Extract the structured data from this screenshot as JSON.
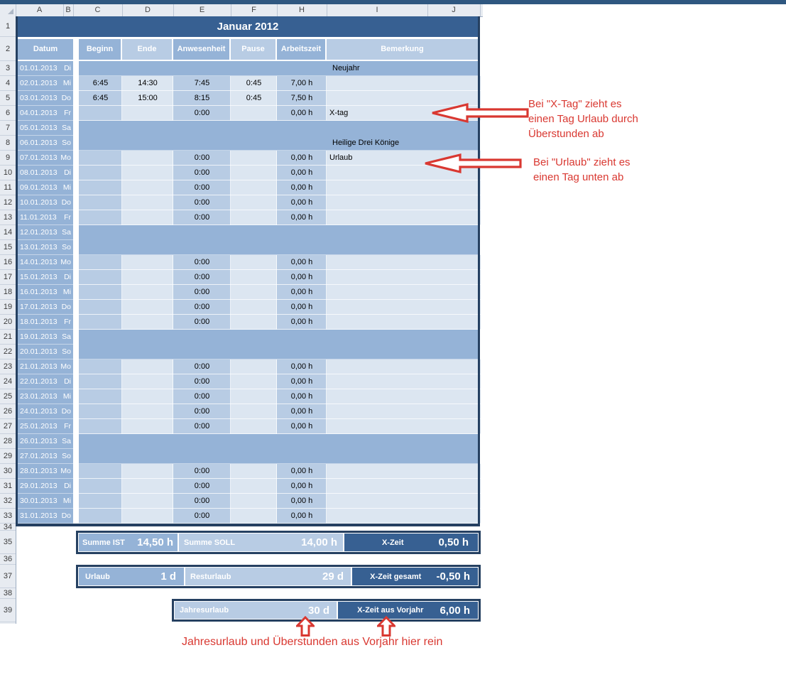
{
  "title": "Januar 2012",
  "spreadsheet": {
    "column_headers": [
      "A",
      "B",
      "C",
      "D",
      "E",
      "F",
      "H",
      "I",
      "J"
    ],
    "row_numbers": [
      "1",
      "2",
      "3",
      "4",
      "5",
      "6",
      "7",
      "8",
      "9",
      "10",
      "11",
      "12",
      "13",
      "14",
      "15",
      "16",
      "17",
      "18",
      "19",
      "20",
      "21",
      "22",
      "23",
      "24",
      "25",
      "26",
      "27",
      "28",
      "29",
      "30",
      "31",
      "32",
      "33",
      "34",
      "35",
      "36",
      "37",
      "38",
      "39"
    ]
  },
  "table": {
    "headers": {
      "datum": "Datum",
      "beginn": "Beginn",
      "ende": "Ende",
      "anwesenheit": "Anwesenheit",
      "pause": "Pause",
      "arbeitszeit": "Arbeitszeit",
      "bemerkung": "Bemerkung"
    },
    "rows": [
      {
        "date": "01.01.2013",
        "day": "Di",
        "band": true,
        "note": "Neujahr"
      },
      {
        "date": "02.01.2013",
        "day": "Mi",
        "beginn": "6:45",
        "ende": "14:30",
        "anwesenheit": "7:45",
        "pause": "0:45",
        "arbeitszeit": "7,00 h",
        "bemerkung": ""
      },
      {
        "date": "03.01.2013",
        "day": "Do",
        "beginn": "6:45",
        "ende": "15:00",
        "anwesenheit": "8:15",
        "pause": "0:45",
        "arbeitszeit": "7,50 h",
        "bemerkung": ""
      },
      {
        "date": "04.01.2013",
        "day": "Fr",
        "beginn": "",
        "ende": "",
        "anwesenheit": "0:00",
        "pause": "",
        "arbeitszeit": "0,00 h",
        "bemerkung": "X-tag"
      },
      {
        "date": "05.01.2013",
        "day": "Sa",
        "band": true,
        "note": ""
      },
      {
        "date": "06.01.2013",
        "day": "So",
        "band": true,
        "note": "Heilige Drei Könige"
      },
      {
        "date": "07.01.2013",
        "day": "Mo",
        "beginn": "",
        "ende": "",
        "anwesenheit": "0:00",
        "pause": "",
        "arbeitszeit": "0,00 h",
        "bemerkung": "Urlaub"
      },
      {
        "date": "08.01.2013",
        "day": "Di",
        "beginn": "",
        "ende": "",
        "anwesenheit": "0:00",
        "pause": "",
        "arbeitszeit": "0,00 h",
        "bemerkung": ""
      },
      {
        "date": "09.01.2013",
        "day": "Mi",
        "beginn": "",
        "ende": "",
        "anwesenheit": "0:00",
        "pause": "",
        "arbeitszeit": "0,00 h",
        "bemerkung": ""
      },
      {
        "date": "10.01.2013",
        "day": "Do",
        "beginn": "",
        "ende": "",
        "anwesenheit": "0:00",
        "pause": "",
        "arbeitszeit": "0,00 h",
        "bemerkung": ""
      },
      {
        "date": "11.01.2013",
        "day": "Fr",
        "beginn": "",
        "ende": "",
        "anwesenheit": "0:00",
        "pause": "",
        "arbeitszeit": "0,00 h",
        "bemerkung": ""
      },
      {
        "date": "12.01.2013",
        "day": "Sa",
        "band": true,
        "note": ""
      },
      {
        "date": "13.01.2013",
        "day": "So",
        "band": true,
        "note": ""
      },
      {
        "date": "14.01.2013",
        "day": "Mo",
        "beginn": "",
        "ende": "",
        "anwesenheit": "0:00",
        "pause": "",
        "arbeitszeit": "0,00 h",
        "bemerkung": ""
      },
      {
        "date": "15.01.2013",
        "day": "Di",
        "beginn": "",
        "ende": "",
        "anwesenheit": "0:00",
        "pause": "",
        "arbeitszeit": "0,00 h",
        "bemerkung": ""
      },
      {
        "date": "16.01.2013",
        "day": "Mi",
        "beginn": "",
        "ende": "",
        "anwesenheit": "0:00",
        "pause": "",
        "arbeitszeit": "0,00 h",
        "bemerkung": ""
      },
      {
        "date": "17.01.2013",
        "day": "Do",
        "beginn": "",
        "ende": "",
        "anwesenheit": "0:00",
        "pause": "",
        "arbeitszeit": "0,00 h",
        "bemerkung": ""
      },
      {
        "date": "18.01.2013",
        "day": "Fr",
        "beginn": "",
        "ende": "",
        "anwesenheit": "0:00",
        "pause": "",
        "arbeitszeit": "0,00 h",
        "bemerkung": ""
      },
      {
        "date": "19.01.2013",
        "day": "Sa",
        "band": true,
        "note": ""
      },
      {
        "date": "20.01.2013",
        "day": "So",
        "band": true,
        "note": ""
      },
      {
        "date": "21.01.2013",
        "day": "Mo",
        "beginn": "",
        "ende": "",
        "anwesenheit": "0:00",
        "pause": "",
        "arbeitszeit": "0,00 h",
        "bemerkung": ""
      },
      {
        "date": "22.01.2013",
        "day": "Di",
        "beginn": "",
        "ende": "",
        "anwesenheit": "0:00",
        "pause": "",
        "arbeitszeit": "0,00 h",
        "bemerkung": ""
      },
      {
        "date": "23.01.2013",
        "day": "Mi",
        "beginn": "",
        "ende": "",
        "anwesenheit": "0:00",
        "pause": "",
        "arbeitszeit": "0,00 h",
        "bemerkung": ""
      },
      {
        "date": "24.01.2013",
        "day": "Do",
        "beginn": "",
        "ende": "",
        "anwesenheit": "0:00",
        "pause": "",
        "arbeitszeit": "0,00 h",
        "bemerkung": ""
      },
      {
        "date": "25.01.2013",
        "day": "Fr",
        "beginn": "",
        "ende": "",
        "anwesenheit": "0:00",
        "pause": "",
        "arbeitszeit": "0,00 h",
        "bemerkung": ""
      },
      {
        "date": "26.01.2013",
        "day": "Sa",
        "band": true,
        "note": ""
      },
      {
        "date": "27.01.2013",
        "day": "So",
        "band": true,
        "note": ""
      },
      {
        "date": "28.01.2013",
        "day": "Mo",
        "beginn": "",
        "ende": "",
        "anwesenheit": "0:00",
        "pause": "",
        "arbeitszeit": "0,00 h",
        "bemerkung": ""
      },
      {
        "date": "29.01.2013",
        "day": "Di",
        "beginn": "",
        "ende": "",
        "anwesenheit": "0:00",
        "pause": "",
        "arbeitszeit": "0,00 h",
        "bemerkung": ""
      },
      {
        "date": "30.01.2013",
        "day": "Mi",
        "beginn": "",
        "ende": "",
        "anwesenheit": "0:00",
        "pause": "",
        "arbeitszeit": "0,00 h",
        "bemerkung": ""
      },
      {
        "date": "31.01.2013",
        "day": "Do",
        "beginn": "",
        "ende": "",
        "anwesenheit": "0:00",
        "pause": "",
        "arbeitszeit": "0,00 h",
        "bemerkung": ""
      }
    ]
  },
  "summary": {
    "summe_ist": {
      "label": "Summe IST",
      "value": "14,50 h"
    },
    "summe_soll": {
      "label": "Summe SOLL",
      "value": "14,00 h"
    },
    "x_zeit": {
      "label": "X-Zeit",
      "value": "0,50 h"
    },
    "urlaub": {
      "label": "Urlaub",
      "value": "1 d"
    },
    "resturlaub": {
      "label": "Resturlaub",
      "value": "29 d"
    },
    "x_zeit_gesamt": {
      "label": "X-Zeit gesamt",
      "value": "-0,50 h"
    },
    "jahresurlaub": {
      "label": "Jahresurlaub",
      "value": "30 d"
    },
    "x_zeit_vorjahr": {
      "label": "X-Zeit aus Vorjahr",
      "value": "6,00 h"
    }
  },
  "annotations": {
    "x_tag_note": {
      "line1": "Bei \"X-Tag\" zieht es",
      "line2": "einen Tag Urlaub durch",
      "line3": "Überstunden ab"
    },
    "urlaub_note": {
      "line1": "Bei \"Urlaub\" zieht es",
      "line2": "einen Tag unten ab"
    },
    "bottom_note": "Jahresurlaub und Überstunden aus Vorjahr hier rein"
  },
  "colors": {
    "title_bar": "#376092",
    "table_border": "#254061",
    "band_medium": "#95B3D7",
    "cell_medium": "#B8CCE4",
    "cell_light": "#DCE6F1",
    "annotation_red": "#D93831"
  }
}
